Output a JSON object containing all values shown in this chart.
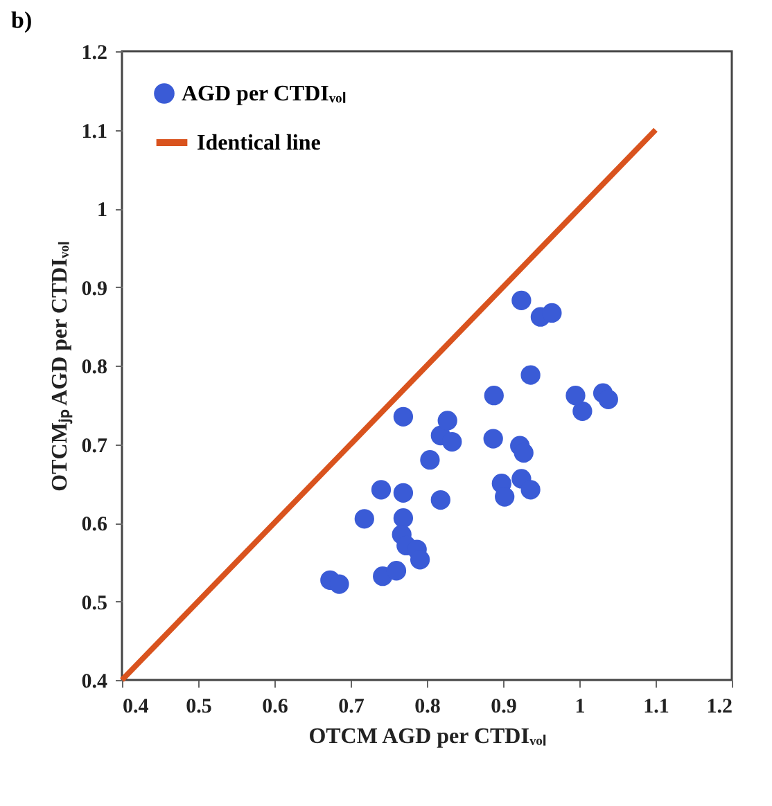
{
  "chart_data": {
    "type": "scatter",
    "title": "b)",
    "xlabel": "OTCM AGD per CTDIᵥₒₗ",
    "ylabel": "OTCMⱼₚ AGD per CTDIᵥₒₗ",
    "xlim": [
      0.4,
      1.2
    ],
    "ylim": [
      0.4,
      1.2
    ],
    "xticks": [
      0.4,
      0.5,
      0.6,
      0.7,
      0.8,
      0.9,
      1,
      1.1,
      1.2
    ],
    "yticks": [
      0.4,
      0.5,
      0.6,
      0.7,
      0.8,
      0.9,
      1,
      1.1,
      1.2
    ],
    "grid": false,
    "legend": "top left",
    "series": [
      {
        "name": "AGD per CTDIᵥₒₗ",
        "color": "#3a5bd6",
        "marker": "circle",
        "x": [
          0.673,
          0.685,
          0.718,
          0.74,
          0.742,
          0.76,
          0.769,
          0.769,
          0.767,
          0.773,
          0.787,
          0.791,
          0.769,
          0.804,
          0.818,
          0.818,
          0.833,
          0.887,
          0.898,
          0.902,
          0.922,
          0.927,
          0.924,
          0.936,
          1.004,
          0.924,
          0.949,
          0.964,
          0.936,
          0.995,
          1.031,
          0.888,
          1.038,
          0.827
        ],
        "values": [
          0.527,
          0.522,
          0.605,
          0.642,
          0.532,
          0.539,
          0.638,
          0.606,
          0.585,
          0.571,
          0.566,
          0.553,
          0.735,
          0.68,
          0.629,
          0.711,
          0.703,
          0.707,
          0.65,
          0.633,
          0.698,
          0.689,
          0.656,
          0.642,
          0.742,
          0.883,
          0.862,
          0.867,
          0.788,
          0.762,
          0.765,
          0.762,
          0.757,
          0.73
        ]
      },
      {
        "type": "line",
        "name": "Identical line",
        "color": "#d9531e",
        "x": [
          0.4,
          1.1
        ],
        "values": [
          0.4,
          1.1
        ]
      }
    ]
  }
}
